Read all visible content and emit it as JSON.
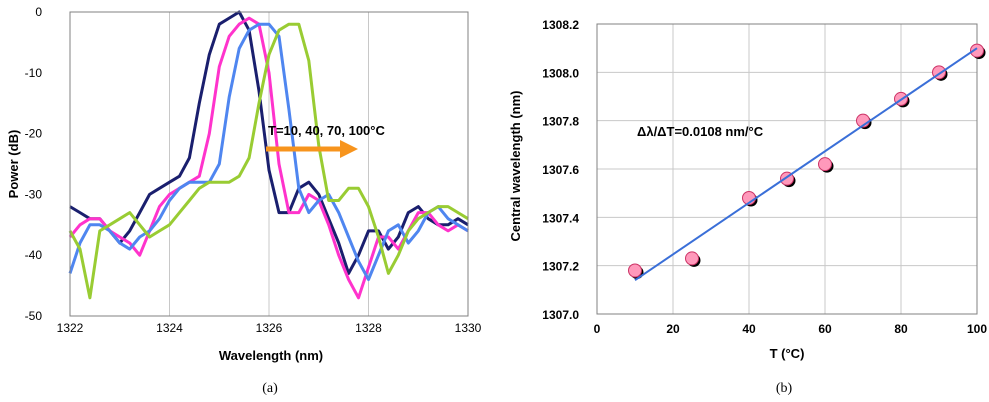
{
  "chart_data": [
    {
      "type": "line",
      "panel_label": "(a)",
      "title": "",
      "xlabel": "Wavelength (nm)",
      "ylabel": "Power (dB)",
      "xlim": [
        1322,
        1330
      ],
      "ylim": [
        -50,
        0
      ],
      "xticks": [
        1322,
        1324,
        1326,
        1328,
        1330
      ],
      "yticks": [
        0,
        -10,
        -20,
        -30,
        -40,
        -50
      ],
      "grid": "vertical",
      "annotation": "T=10, 40, 70, 100°C",
      "annotation_arrow_color": "#f7941d",
      "series": [
        {
          "color": "#1a1f6e",
          "x": [
            1322.0,
            1322.2,
            1322.4,
            1322.6,
            1322.8,
            1323.0,
            1323.2,
            1323.4,
            1323.6,
            1323.8,
            1324.0,
            1324.2,
            1324.4,
            1324.6,
            1324.8,
            1325.0,
            1325.2,
            1325.4,
            1325.6,
            1325.8,
            1326.0,
            1326.2,
            1326.4,
            1326.6,
            1326.8,
            1327.0,
            1327.2,
            1327.4,
            1327.6,
            1327.8,
            1328.0,
            1328.2,
            1328.4,
            1328.6,
            1328.8,
            1329.0,
            1329.2,
            1329.4,
            1329.6,
            1329.8,
            1330.0
          ],
          "y": [
            -32,
            -33,
            -34,
            -34,
            -36,
            -38,
            -36,
            -33,
            -30,
            -29,
            -28,
            -27,
            -24,
            -15,
            -7,
            -2,
            -1,
            0,
            -3,
            -13,
            -26,
            -33,
            -33,
            -29,
            -28,
            -30,
            -34,
            -38,
            -43,
            -40,
            -36,
            -36,
            -39,
            -37,
            -33,
            -32,
            -34,
            -35,
            -35,
            -34,
            -35
          ]
        },
        {
          "color": "#ff33cc",
          "x": [
            1322.0,
            1322.2,
            1322.4,
            1322.6,
            1322.8,
            1323.0,
            1323.2,
            1323.4,
            1323.6,
            1323.8,
            1324.0,
            1324.2,
            1324.4,
            1324.6,
            1324.8,
            1325.0,
            1325.2,
            1325.4,
            1325.6,
            1325.8,
            1326.0,
            1326.2,
            1326.4,
            1326.6,
            1326.8,
            1327.0,
            1327.2,
            1327.4,
            1327.6,
            1327.8,
            1328.0,
            1328.2,
            1328.4,
            1328.6,
            1328.8,
            1329.0,
            1329.2,
            1329.4,
            1329.6,
            1329.8,
            1330.0
          ],
          "y": [
            -37,
            -35,
            -34,
            -34,
            -36,
            -37,
            -38,
            -40,
            -36,
            -32,
            -30,
            -29,
            -28,
            -27,
            -20,
            -9,
            -4,
            -2,
            -1,
            -2,
            -10,
            -25,
            -33,
            -33,
            -30,
            -31,
            -35,
            -40,
            -44,
            -47,
            -42,
            -37,
            -37,
            -39,
            -36,
            -33,
            -33,
            -35,
            -36,
            -35,
            -36
          ]
        },
        {
          "color": "#4f86f0",
          "x": [
            1322.0,
            1322.2,
            1322.4,
            1322.6,
            1322.8,
            1323.0,
            1323.2,
            1323.4,
            1323.6,
            1323.8,
            1324.0,
            1324.2,
            1324.4,
            1324.6,
            1324.8,
            1325.0,
            1325.2,
            1325.4,
            1325.6,
            1325.8,
            1326.0,
            1326.2,
            1326.4,
            1326.6,
            1326.8,
            1327.0,
            1327.2,
            1327.4,
            1327.6,
            1327.8,
            1328.0,
            1328.2,
            1328.4,
            1328.6,
            1328.8,
            1329.0,
            1329.2,
            1329.4,
            1329.6,
            1329.8,
            1330.0
          ],
          "y": [
            -43,
            -38,
            -35,
            -35,
            -36,
            -38,
            -39,
            -37,
            -36,
            -34,
            -31,
            -29,
            -28,
            -28,
            -28,
            -25,
            -14,
            -6,
            -3,
            -2,
            -2,
            -4,
            -16,
            -29,
            -33,
            -31,
            -30,
            -33,
            -37,
            -41,
            -44,
            -40,
            -36,
            -35,
            -38,
            -36,
            -33,
            -32,
            -34,
            -35,
            -36
          ]
        },
        {
          "color": "#99cc33",
          "x": [
            1322.0,
            1322.2,
            1322.4,
            1322.6,
            1322.8,
            1323.0,
            1323.2,
            1323.4,
            1323.6,
            1323.8,
            1324.0,
            1324.2,
            1324.4,
            1324.6,
            1324.8,
            1325.0,
            1325.2,
            1325.4,
            1325.6,
            1325.8,
            1326.0,
            1326.2,
            1326.4,
            1326.6,
            1326.8,
            1327.0,
            1327.2,
            1327.4,
            1327.6,
            1327.8,
            1328.0,
            1328.2,
            1328.4,
            1328.6,
            1328.8,
            1329.0,
            1329.2,
            1329.4,
            1329.6,
            1329.8,
            1330.0
          ],
          "y": [
            -36,
            -39,
            -47,
            -36,
            -35,
            -34,
            -33,
            -35,
            -37,
            -36,
            -35,
            -33,
            -31,
            -29,
            -28,
            -28,
            -28,
            -27,
            -24,
            -15,
            -7,
            -3,
            -2,
            -2,
            -8,
            -22,
            -31,
            -31,
            -29,
            -29,
            -32,
            -37,
            -43,
            -40,
            -36,
            -34,
            -33,
            -32,
            -32,
            -33,
            -34
          ]
        }
      ]
    },
    {
      "type": "scatter",
      "panel_label": "(b)",
      "title": "",
      "xlabel": "T (°C)",
      "ylabel": "Central wavelength (nm)",
      "xlim": [
        0,
        100
      ],
      "ylim": [
        1307.0,
        1308.2
      ],
      "xticks": [
        0,
        20,
        40,
        60,
        80,
        100
      ],
      "yticks": [
        "1307.0",
        "1307.2",
        "1307.4",
        "1307.6",
        "1307.8",
        "1308.0",
        "1308.2"
      ],
      "grid": "both",
      "annotation": "Δλ/ΔT=0.0108 nm/°C",
      "points": {
        "x": [
          10,
          25,
          40,
          50,
          60,
          70,
          80,
          90,
          100
        ],
        "y": [
          1307.18,
          1307.23,
          1307.48,
          1307.56,
          1307.62,
          1307.8,
          1307.89,
          1308.0,
          1308.09
        ],
        "fill": "#ff99bb",
        "stroke": "#cc3366",
        "shadow": "#000000"
      },
      "fit_line": {
        "x": [
          10,
          100
        ],
        "y": [
          1307.14,
          1308.1
        ],
        "color": "#3a6fd8"
      }
    }
  ]
}
